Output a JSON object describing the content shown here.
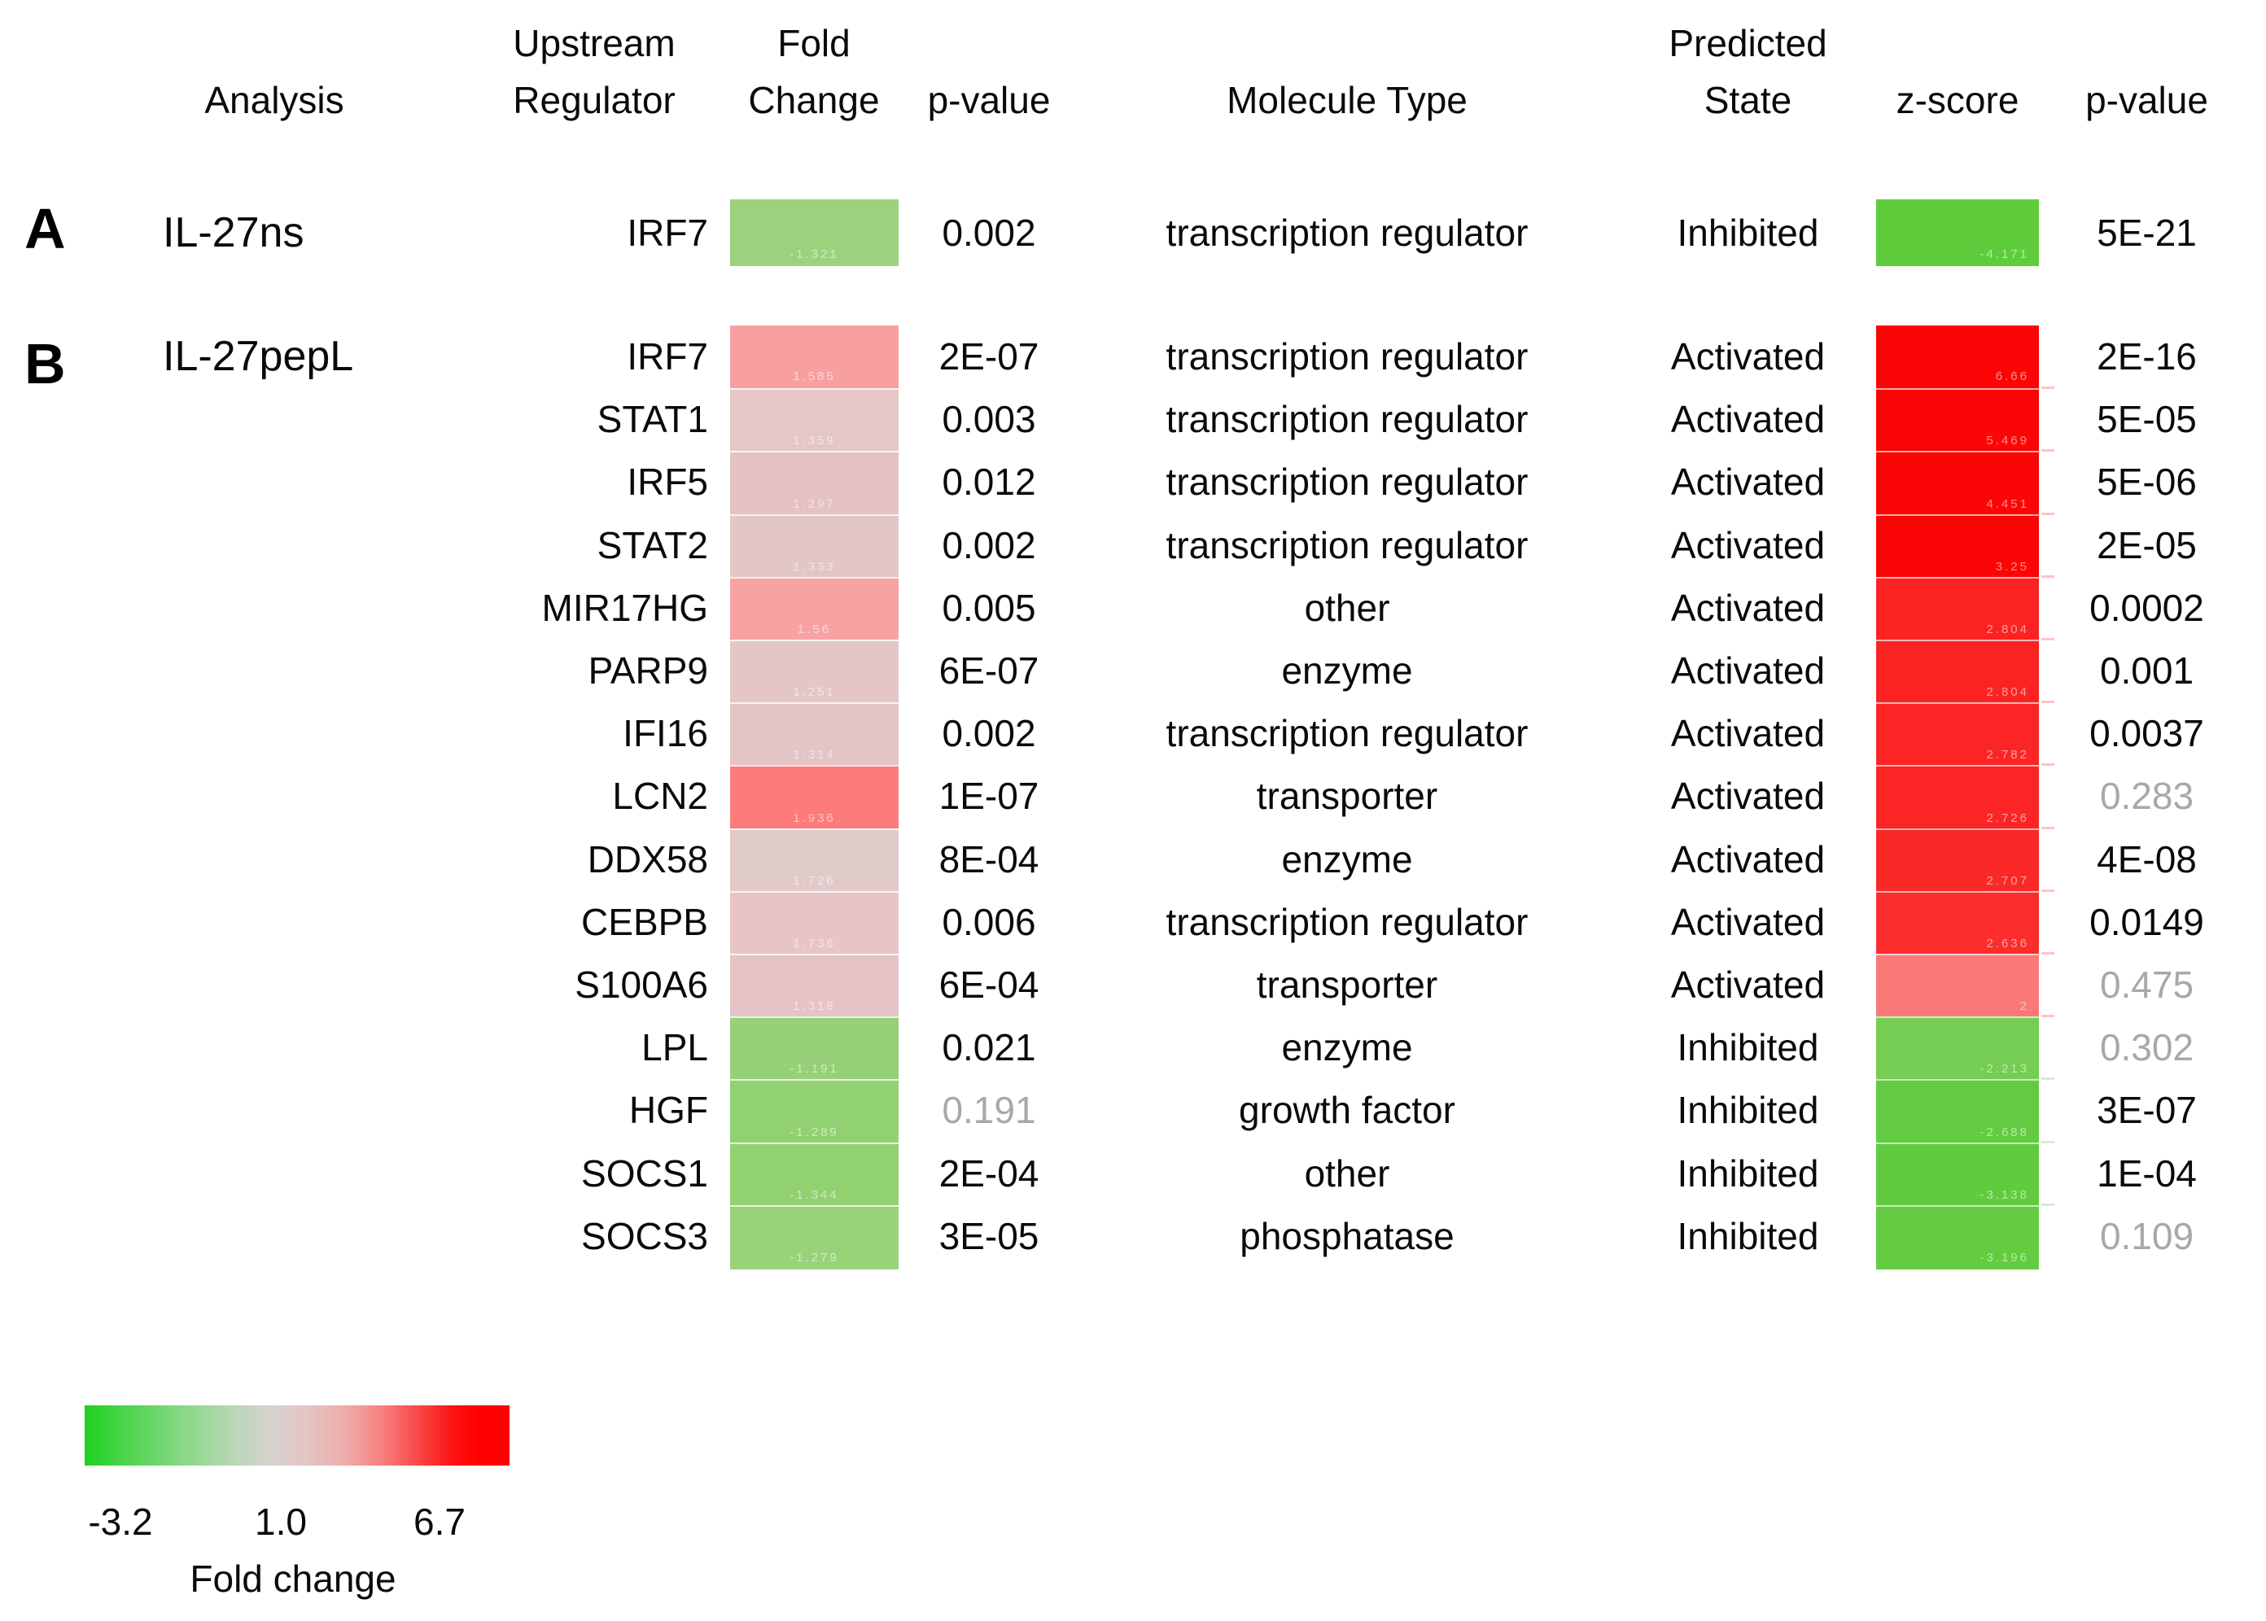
{
  "columns": {
    "analysis": "Analysis",
    "upstream_regulator_line1": "Upstream",
    "upstream_regulator_line2": "Regulator",
    "fold_change_line1": "Fold",
    "fold_change_line2": "Change",
    "p_value_1": "p-value",
    "molecule_type": "Molecule Type",
    "predicted_state_line1": "Predicted",
    "predicted_state_line2": "State",
    "z_score": "z-score",
    "p_value_2": "p-value"
  },
  "chart_data": {
    "type": "table",
    "legend": {
      "title": "Fold change",
      "min_label": "-3.2",
      "mid_label": "1.0",
      "max_label": "6.7",
      "gradient_colors": [
        "#1ed11e",
        "#d7d2cf",
        "#ff0000"
      ]
    },
    "sections": [
      {
        "panel": "A",
        "analysis": "IL-27ns",
        "rows": [
          {
            "regulator": "IRF7",
            "fold_color": "#9cd17e",
            "fold_value": "-1.321",
            "p_value": "0.002",
            "p_muted": false,
            "molecule_type": "transcription regulator",
            "state": "Inhibited",
            "z_color": "#5ecc3b",
            "z_value": "-4.171",
            "z_p_value": "5E-21",
            "z_p_muted": false
          }
        ]
      },
      {
        "panel": "B",
        "analysis": "IL-27pepL",
        "rows": [
          {
            "regulator": "IRF7",
            "fold_color": "#f8a0a0",
            "fold_value": "1.585",
            "p_value": "2E-07",
            "p_muted": false,
            "molecule_type": "transcription regulator",
            "state": "Activated",
            "z_color": "#fb0606",
            "z_value": "6.66",
            "z_p_value": "2E-16",
            "z_p_muted": false
          },
          {
            "regulator": "STAT1",
            "fold_color": "#e5c7c7",
            "fold_value": "1.359",
            "p_value": "0.003",
            "p_muted": false,
            "molecule_type": "transcription regulator",
            "state": "Activated",
            "z_color": "#fb0606",
            "z_value": "5.469",
            "z_p_value": "5E-05",
            "z_p_muted": false
          },
          {
            "regulator": "IRF5",
            "fold_color": "#e5c2c2",
            "fold_value": "1.297",
            "p_value": "0.012",
            "p_muted": false,
            "molecule_type": "transcription regulator",
            "state": "Activated",
            "z_color": "#fb0606",
            "z_value": "4.451",
            "z_p_value": "5E-06",
            "z_p_muted": false
          },
          {
            "regulator": "STAT2",
            "fold_color": "#e3c6c6",
            "fold_value": "1.333",
            "p_value": "0.002",
            "p_muted": false,
            "molecule_type": "transcription regulator",
            "state": "Activated",
            "z_color": "#fb0606",
            "z_value": "3.25",
            "z_p_value": "2E-05",
            "z_p_muted": false
          },
          {
            "regulator": "MIR17HG",
            "fold_color": "#f7a3a3",
            "fold_value": "1.56",
            "p_value": "0.005",
            "p_muted": false,
            "molecule_type": "other",
            "state": "Activated",
            "z_color": "#fb2222",
            "z_value": "2.804",
            "z_p_value": "0.0002",
            "z_p_muted": false
          },
          {
            "regulator": "PARP9",
            "fold_color": "#e5c6c6",
            "fold_value": "1.251",
            "p_value": "6E-07",
            "p_muted": false,
            "molecule_type": "enzyme",
            "state": "Activated",
            "z_color": "#fb2222",
            "z_value": "2.804",
            "z_p_value": "0.001",
            "z_p_muted": false
          },
          {
            "regulator": "IFI16",
            "fold_color": "#e3c5c5",
            "fold_value": "1.314",
            "p_value": "0.002",
            "p_muted": false,
            "molecule_type": "transcription regulator",
            "state": "Activated",
            "z_color": "#fb2525",
            "z_value": "2.782",
            "z_p_value": "0.0037",
            "z_p_muted": false
          },
          {
            "regulator": "LCN2",
            "fold_color": "#fd7b7b",
            "fold_value": "1.936",
            "p_value": "1E-07",
            "p_muted": false,
            "molecule_type": "transporter",
            "state": "Activated",
            "z_color": "#fb2525",
            "z_value": "2.726",
            "z_p_value": "0.283",
            "z_p_muted": true
          },
          {
            "regulator": "DDX58",
            "fold_color": "#e1caca",
            "fold_value": "1.726",
            "p_value": "8E-04",
            "p_muted": false,
            "molecule_type": "enzyme",
            "state": "Activated",
            "z_color": "#fb2828",
            "z_value": "2.707",
            "z_p_value": "4E-08",
            "z_p_muted": false
          },
          {
            "regulator": "CEBPB",
            "fold_color": "#e9c4c6",
            "fold_value": "1.736",
            "p_value": "0.006",
            "p_muted": false,
            "molecule_type": "transcription regulator",
            "state": "Activated",
            "z_color": "#fb2d2d",
            "z_value": "2.636",
            "z_p_value": "0.0149",
            "z_p_muted": false
          },
          {
            "regulator": "S100A6",
            "fold_color": "#e6c3c6",
            "fold_value": "1.318",
            "p_value": "6E-04",
            "p_muted": false,
            "molecule_type": "transporter",
            "state": "Activated",
            "z_color": "#fa7878",
            "z_value": "2",
            "z_p_value": "0.475",
            "z_p_muted": true
          },
          {
            "regulator": "LPL",
            "fold_color": "#96d077",
            "fold_value": "-1.191",
            "p_value": "0.021",
            "p_muted": false,
            "molecule_type": "enzyme",
            "state": "Inhibited",
            "z_color": "#75cd54",
            "z_value": "-2.213",
            "z_p_value": "0.302",
            "z_p_muted": true
          },
          {
            "regulator": "HGF",
            "fold_color": "#92d172",
            "fold_value": "-1.289",
            "p_value": "0.191",
            "p_muted": true,
            "molecule_type": "growth factor",
            "state": "Inhibited",
            "z_color": "#63cb41",
            "z_value": "-2.688",
            "z_p_value": "3E-07",
            "z_p_muted": false
          },
          {
            "regulator": "SOCS1",
            "fold_color": "#92d170",
            "fold_value": "-1.344",
            "p_value": "2E-04",
            "p_muted": false,
            "molecule_type": "other",
            "state": "Inhibited",
            "z_color": "#61cb3f",
            "z_value": "-3.138",
            "z_p_value": "1E-04",
            "z_p_muted": false
          },
          {
            "regulator": "SOCS3",
            "fold_color": "#98d37a",
            "fold_value": "-1.279",
            "p_value": "3E-05",
            "p_muted": false,
            "molecule_type": "phosphatase",
            "state": "Inhibited",
            "z_color": "#63cc41",
            "z_value": "-3.196",
            "z_p_value": "0.109",
            "z_p_muted": true
          }
        ]
      }
    ]
  }
}
